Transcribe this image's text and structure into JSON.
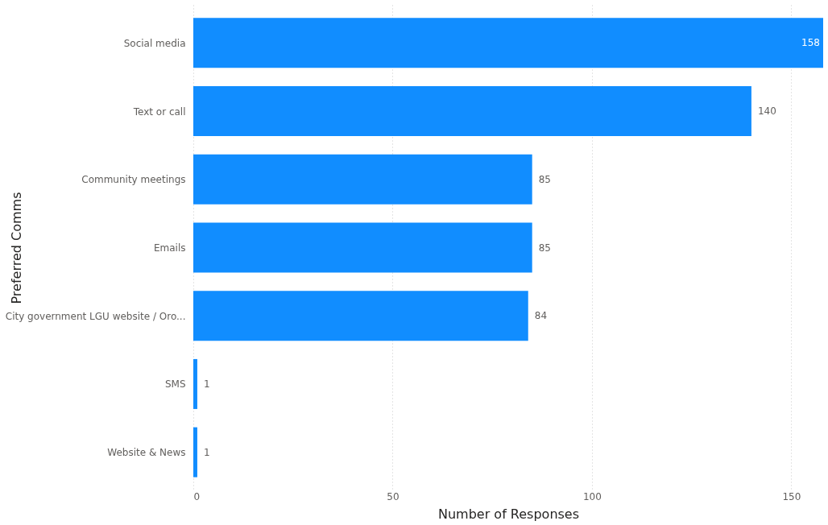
{
  "chart_data": {
    "type": "bar",
    "orientation": "horizontal",
    "xlabel": "Number of Responses",
    "ylabel": "Preferred Comms",
    "categories": [
      "Social media",
      "Text or call",
      "Community meetings",
      "Emails",
      "City government LGU website / Oro...",
      "SMS",
      "Website & News"
    ],
    "values": [
      158,
      140,
      85,
      85,
      84,
      1,
      1
    ],
    "color": "#118dff",
    "xlim": [
      0,
      158
    ],
    "xticks": [
      0,
      50,
      100,
      150
    ],
    "grid": "x",
    "data_labels": true
  }
}
